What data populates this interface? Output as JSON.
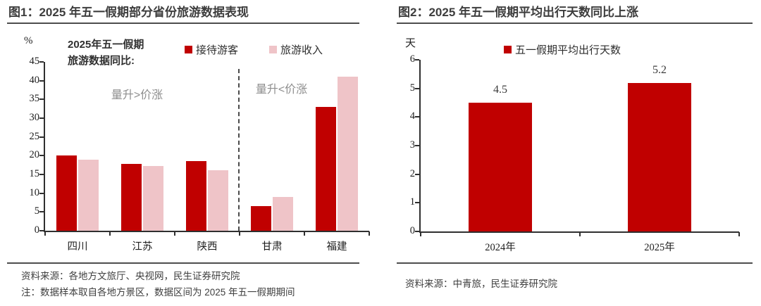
{
  "colors": {
    "accent": "#C00000",
    "pink": "#EFC4C8",
    "title_text": "#3D3D3D",
    "rule": "#4D4D4D",
    "axis": "#2F2F2F",
    "annotation_gray": "#8E8E8E",
    "source_text": "#3F3F3F"
  },
  "figures": [
    {
      "panel_title": "图1：2025 年五一假期部分省份旅游数据表现",
      "source": "资料来源：各地方文旅厅、央视网，民生证券研究院",
      "note": "注：数据样本取自各地方景区，数据区间为 2025 年五一假期期间"
    },
    {
      "panel_title": "图2：2025 年五一假期平均出行天数同比上涨",
      "source": "资料来源：中青旅，民生证券研究院"
    }
  ],
  "chart_data": [
    {
      "type": "bar",
      "title_lines": [
        "2025年五一假期",
        "旅游数据同比:"
      ],
      "unit": "%",
      "categories": [
        "四川",
        "江苏",
        "陕西",
        "甘肃",
        "福建"
      ],
      "series": [
        {
          "name": "接待游客",
          "color_key": "accent",
          "values": [
            20,
            17.8,
            18.5,
            6.5,
            33
          ]
        },
        {
          "name": "旅游收入",
          "color_key": "pink",
          "values": [
            19,
            17.2,
            16.2,
            9,
            41
          ]
        }
      ],
      "ylim": [
        0,
        45
      ],
      "yticks": [
        0,
        5,
        10,
        15,
        20,
        25,
        30,
        35,
        40,
        45
      ],
      "annotations": [
        "量升>价涨",
        "量升<价涨"
      ],
      "divider_after_index": 3,
      "legend_position": "top",
      "grid": false,
      "data_labels": false
    },
    {
      "type": "bar",
      "unit": "天",
      "categories": [
        "2024年",
        "2025年"
      ],
      "series": [
        {
          "name": "五一假期平均出行天数",
          "color_key": "accent",
          "values": [
            4.5,
            5.2
          ]
        }
      ],
      "ylim": [
        0,
        6
      ],
      "yticks": [
        0,
        1,
        2,
        3,
        4,
        5,
        6
      ],
      "legend_position": "top",
      "grid": false,
      "data_labels": true
    }
  ]
}
